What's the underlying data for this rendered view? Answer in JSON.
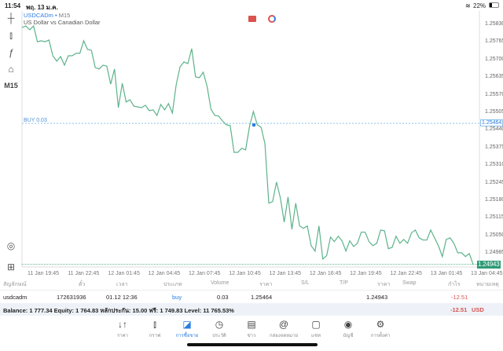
{
  "status": {
    "time": "11:54",
    "date": "พฤ. 13 ม.ค.",
    "battery": "22%"
  },
  "chart": {
    "symbol": "USDCADm",
    "timeframe": "M15",
    "description": "US Dollar vs Canadian Dollar",
    "timeframe_button": "M15",
    "buy_label": "BUY 0.03",
    "buy_price": "1.25464",
    "last_price": "1.24943",
    "line_color": "#5cb38a",
    "buy_color": "#2a7de1"
  },
  "chart_data": {
    "type": "line",
    "ylim": [
      1.24943,
      1.2583
    ],
    "y_ticks": [
      "1.25830",
      "1.25765",
      "1.25700",
      "1.25635",
      "1.25570",
      "1.25505",
      "1.25440",
      "1.25375",
      "1.25310",
      "1.25245",
      "1.25180",
      "1.25115",
      "1.25050",
      "1.24985"
    ],
    "x_ticks": [
      "11 Jan 19:45",
      "11 Jan 22:45",
      "12 Jan 01:45",
      "12 Jan 04:45",
      "12 Jan 07:45",
      "12 Jan 10:45",
      "12 Jan 13:45",
      "12 Jan 16:45",
      "12 Jan 19:45",
      "12 Jan 22:45",
      "13 Jan 01:45",
      "13 Jan 04:45"
    ],
    "values": [
      1.25818,
      1.25824,
      1.2581,
      1.25824,
      1.25766,
      1.25769,
      1.25766,
      1.25772,
      1.25714,
      1.25694,
      1.25711,
      1.25679,
      1.25714,
      1.25714,
      1.25723,
      1.25723,
      1.25769,
      1.25737,
      1.25734,
      1.2567,
      1.25665,
      1.25679,
      1.25676,
      1.25609,
      1.25665,
      1.25522,
      1.25612,
      1.25543,
      1.25551,
      1.25528,
      1.25525,
      1.25522,
      1.25531,
      1.25511,
      1.25514,
      1.25493,
      1.25534,
      1.25514,
      1.25537,
      1.25502,
      1.25607,
      1.25673,
      1.25691,
      1.25685,
      1.2574,
      1.25636,
      1.25633,
      1.25653,
      1.25601,
      1.25517,
      1.25493,
      1.25491,
      1.25473,
      1.25459,
      1.25456,
      1.25357,
      1.25357,
      1.25372,
      1.25366,
      1.25453,
      1.25508,
      1.25459,
      1.2545,
      1.25389,
      1.25169,
      1.25175,
      1.25247,
      1.25189,
      1.25099,
      1.25192,
      1.25073,
      1.25169,
      1.25085,
      1.25076,
      1.25085,
      1.25012,
      1.24992,
      1.25085,
      1.24963,
      1.24975,
      1.25044,
      1.25027,
      1.25047,
      1.2503,
      1.24992,
      1.2503,
      1.25009,
      1.25021,
      1.25062,
      1.25062,
      1.25027,
      1.25012,
      1.25021,
      1.2507,
      1.25067,
      1.25001,
      1.25006,
      1.25047,
      1.25021,
      1.25035,
      1.25021,
      1.25059,
      1.2507,
      1.25041,
      1.25033,
      1.25033,
      1.2507,
      1.25041,
      1.25012,
      1.24972,
      1.25035,
      1.25041,
      1.25021,
      1.24986,
      1.24986,
      1.24972,
      1.24983,
      1.24943
    ]
  },
  "table": {
    "headers": [
      "สัญลักษณ์",
      "ตั๋ว",
      "เวลา",
      "ประเภท",
      "Volume",
      "ราคา",
      "S/L",
      "T/P",
      "ราคา",
      "Swap",
      "กำไร",
      "หมายเหตุ"
    ],
    "row": [
      "usdcadm",
      "172631936",
      "01.12 12:36",
      "buy",
      "0.03",
      "1.25464",
      "",
      "",
      "1.24943",
      "",
      "-12.51",
      ""
    ]
  },
  "balance": {
    "text": "Balance: 1 777.34 Equity: 1 764.83 หลักประกัน: 15.00 ฟรี: 1 749.83 Level: 11 765.53%",
    "profit": "-12.51",
    "currency": "USD"
  },
  "nav": [
    {
      "label": "ราคา",
      "icon": "↓↑"
    },
    {
      "label": "กราฟ",
      "icon": "⫾"
    },
    {
      "label": "การซื้อขาย",
      "icon": "◪"
    },
    {
      "label": "ประวัติ",
      "icon": "◷"
    },
    {
      "label": "ข่าว",
      "icon": "▤"
    },
    {
      "label": "กล่องจดหมาย",
      "icon": "@"
    },
    {
      "label": "แชท",
      "icon": "▢"
    },
    {
      "label": "บัญชี",
      "icon": "◉"
    },
    {
      "label": "การตั้งค่า",
      "icon": "⚙"
    }
  ]
}
